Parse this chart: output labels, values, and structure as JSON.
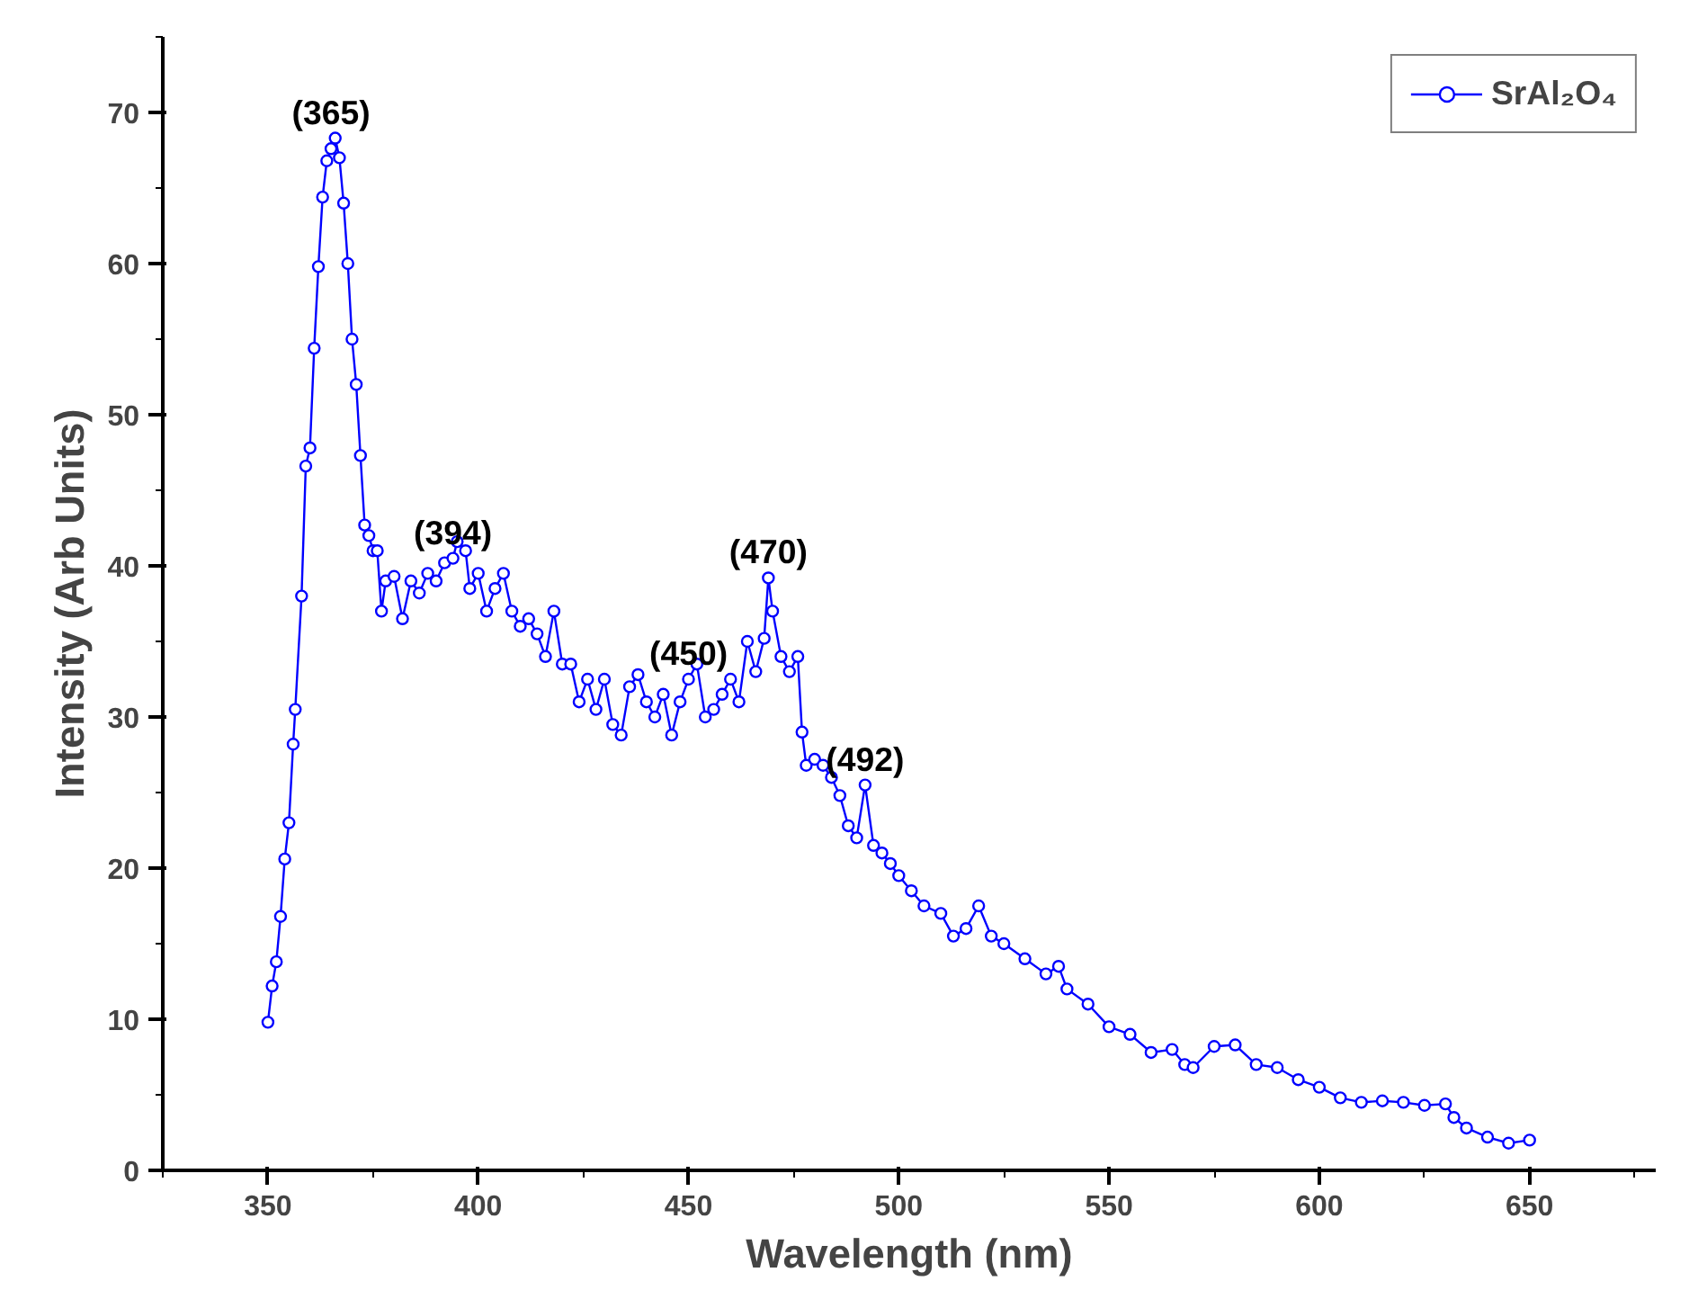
{
  "chart_data": {
    "type": "line",
    "xlabel": "Wavelength (nm)",
    "ylabel": "Intensity (Arb Units)",
    "xlim": [
      325,
      680
    ],
    "ylim": [
      0,
      75
    ],
    "xticks": [
      350,
      400,
      450,
      500,
      550,
      600,
      650
    ],
    "yticks": [
      0,
      10,
      20,
      30,
      40,
      50,
      60,
      70
    ],
    "grid": false,
    "legend": "top right",
    "marker": "circle",
    "line_style": "solid",
    "series": [
      {
        "name": "SrAl₂O₄",
        "color": "#0000ff",
        "x": [
          350,
          351,
          352,
          353,
          354,
          355,
          356,
          356.5,
          358,
          359,
          360,
          361,
          362,
          363,
          364,
          365,
          366,
          367,
          368,
          369,
          370,
          371,
          372,
          373,
          374,
          375,
          376,
          377,
          378,
          380,
          382,
          384,
          386,
          388,
          390,
          392,
          394,
          395,
          397,
          398,
          400,
          402,
          404,
          406,
          408,
          410,
          412,
          414,
          416,
          418,
          420,
          422,
          424,
          426,
          428,
          430,
          432,
          434,
          436,
          438,
          440,
          442,
          444,
          446,
          448,
          450,
          452,
          454,
          456,
          458,
          460,
          462,
          464,
          466,
          468,
          469,
          470,
          472,
          474,
          476,
          477,
          478,
          480,
          482,
          484,
          486,
          488,
          490,
          492,
          494,
          496,
          498,
          500,
          503,
          506,
          510,
          513,
          516,
          519,
          522,
          525,
          530,
          535,
          538,
          540,
          545,
          550,
          555,
          560,
          565,
          568,
          570,
          575,
          580,
          585,
          590,
          595,
          600,
          605,
          610,
          615,
          620,
          625,
          630,
          632,
          635,
          640,
          645,
          650
        ],
        "values": [
          9.8,
          12.2,
          13.8,
          16.8,
          20.6,
          23,
          28.2,
          30.5,
          38,
          46.6,
          47.8,
          54.4,
          59.8,
          64.4,
          66.8,
          67.6,
          68.3,
          67,
          64,
          60,
          55,
          52,
          47.3,
          42.7,
          42,
          41,
          41,
          37,
          39,
          39.3,
          36.5,
          39,
          38.2,
          39.5,
          39,
          40.2,
          40.5,
          41.6,
          41,
          38.5,
          39.5,
          37,
          38.5,
          39.5,
          37,
          36,
          36.5,
          35.5,
          34,
          37,
          33.5,
          33.5,
          31,
          32.5,
          30.5,
          32.5,
          29.5,
          28.8,
          32,
          32.8,
          31,
          30,
          31.5,
          28.8,
          31,
          32.5,
          33.5,
          30,
          30.5,
          31.5,
          32.5,
          31,
          35,
          33,
          35.2,
          39.2,
          37,
          34,
          33,
          34,
          29,
          26.8,
          27.2,
          26.8,
          26,
          24.8,
          22.8,
          22,
          25.5,
          21.5,
          21,
          20.3,
          19.5,
          18.5,
          17.5,
          17,
          15.5,
          16,
          17.5,
          15.5,
          15,
          14,
          13,
          13.5,
          12,
          11,
          9.5,
          9,
          7.8,
          8,
          7,
          6.8,
          8.2,
          8.3,
          7,
          6.8,
          6,
          5.5,
          4.8,
          4.5,
          4.6,
          4.5,
          4.3,
          4.4,
          3.5,
          2.8,
          2.2,
          1.8,
          2
        ]
      }
    ],
    "annotations": [
      {
        "text": "(365)",
        "x": 365,
        "y": 68.3
      },
      {
        "text": "(394)",
        "x": 394,
        "y": 40.5
      },
      {
        "text": "(450)",
        "x": 450,
        "y": 32.5
      },
      {
        "text": "(470)",
        "x": 469,
        "y": 39.2
      },
      {
        "text": "(492)",
        "x": 492,
        "y": 25.5
      }
    ]
  }
}
